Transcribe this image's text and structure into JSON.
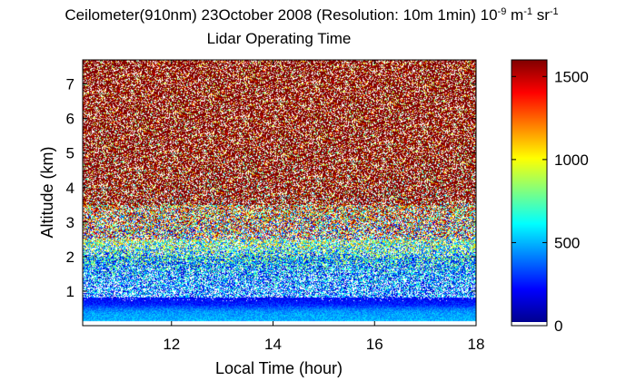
{
  "chart_data": {
    "type": "heatmap",
    "title_main": "Ceilometer(910nm) 23October 2008 (Resolution: 10m 1min) 10",
    "title_exp1": "-9",
    "title_mid": " m",
    "title_exp2": "-1",
    "title_sr": " sr",
    "title_exp3": "-1",
    "subtitle": "Lidar Operating Time",
    "xlabel": "Local Time (hour)",
    "ylabel": "Altitude (km)",
    "xlim": [
      10.25,
      18.0
    ],
    "ylim": [
      0.0,
      7.7
    ],
    "xticks": [
      12,
      14,
      16,
      18
    ],
    "yticks": [
      1,
      2,
      3,
      4,
      5,
      6,
      7
    ],
    "colorbar": {
      "min": 0,
      "max": 1600,
      "ticks": [
        0,
        500,
        1000,
        1500
      ],
      "colormap": [
        "#00008f",
        "#0000ff",
        "#00ffff",
        "#ffff00",
        "#ff0000",
        "#800000"
      ]
    },
    "profile": {
      "note_altitude_km": [
        0.0,
        0.1,
        0.2,
        0.3,
        0.4,
        0.5,
        0.6,
        0.7,
        0.8,
        1.0,
        1.3,
        1.6,
        1.9,
        2.2,
        2.6,
        3.0,
        3.5,
        4.0,
        5.0,
        6.0,
        7.7
      ],
      "typical_value": [
        0,
        480,
        470,
        460,
        430,
        350,
        250,
        220,
        210,
        240,
        280,
        360,
        480,
        650,
        850,
        1050,
        1250,
        1400,
        1500,
        1550,
        1600
      ]
    }
  }
}
